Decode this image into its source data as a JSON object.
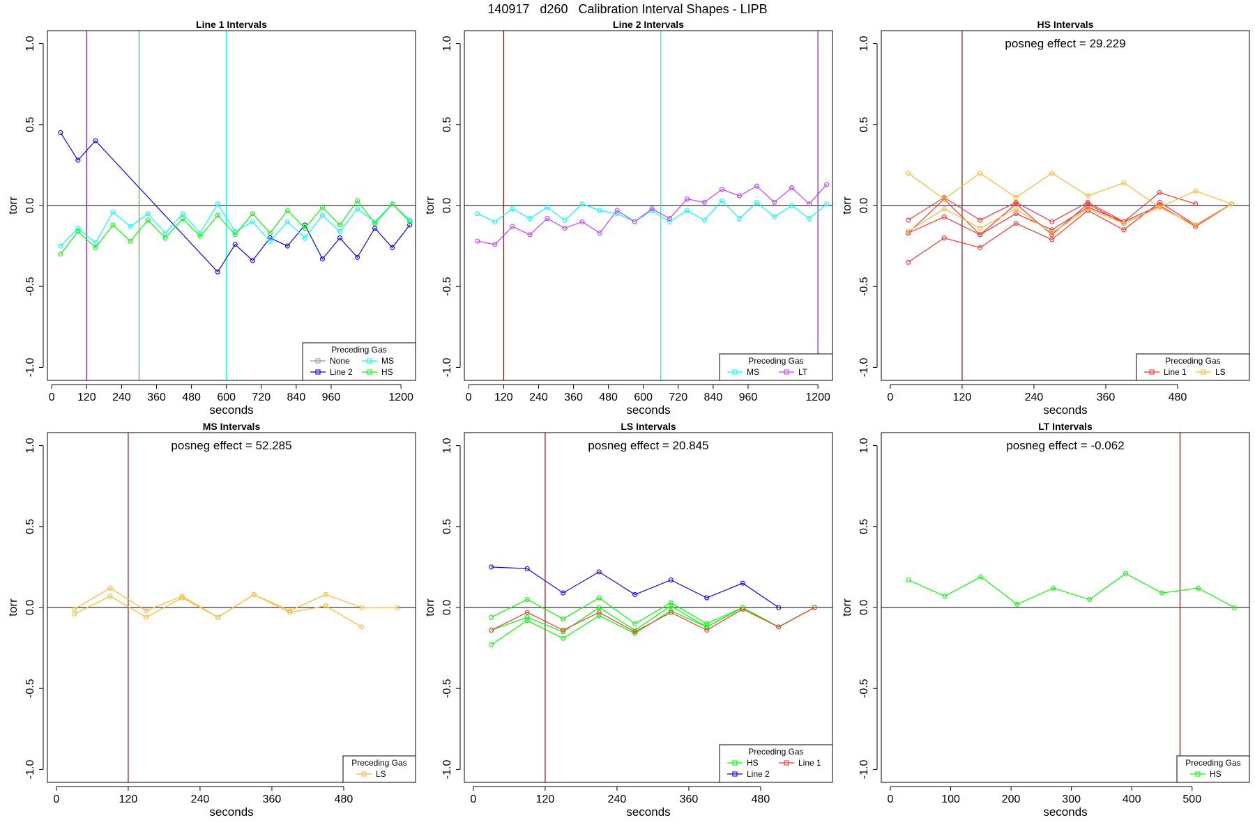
{
  "figure": {
    "title": "140917   d260   Calibration Interval Shapes - LIPB"
  },
  "chart_data": [
    {
      "type": "line",
      "title": "Line 1 Intervals",
      "xlabel": "seconds",
      "ylabel": "torr",
      "xlim": [
        -15,
        1250
      ],
      "ylim": [
        -1.08,
        1.08
      ],
      "xticks": [
        0,
        120,
        240,
        360,
        480,
        600,
        720,
        840,
        960,
        1200
      ],
      "yticks": [
        -1.0,
        -0.5,
        0.0,
        0.5,
        1.0
      ],
      "ytick_labels": [
        "-1.0",
        "-0.5",
        "0.0",
        "0.5",
        "1.0"
      ],
      "hline": 0,
      "vlines": [
        {
          "x": 120,
          "color": "#8b2222"
        },
        {
          "x": 120,
          "color": "#8a2be2"
        },
        {
          "x": 300,
          "color": "#32cd32"
        },
        {
          "x": 600,
          "color": "#00ffff"
        }
      ],
      "series": [
        {
          "name": "Line 2",
          "color": "#0000ff",
          "x": [
            30,
            90,
            150,
            570,
            630,
            690,
            750,
            810,
            870,
            930,
            990,
            1050,
            1110,
            1170,
            1230
          ],
          "y": [
            0.45,
            0.28,
            0.4,
            -0.41,
            -0.24,
            -0.34,
            -0.2,
            -0.25,
            -0.12,
            -0.33,
            -0.2,
            -0.32,
            -0.14,
            -0.26,
            -0.12
          ]
        },
        {
          "name": "MS",
          "color": "#00ffff",
          "x": [
            30,
            90,
            150,
            210,
            270,
            330,
            390,
            450,
            510,
            570,
            630,
            690,
            750,
            810,
            870,
            930,
            990,
            1050,
            1110,
            1170,
            1230
          ],
          "y": [
            -0.25,
            -0.14,
            -0.23,
            -0.04,
            -0.13,
            -0.05,
            -0.17,
            -0.05,
            -0.17,
            0.01,
            -0.16,
            -0.1,
            -0.22,
            -0.1,
            -0.2,
            -0.06,
            -0.16,
            -0.02,
            -0.1,
            0.01,
            -0.09
          ]
        },
        {
          "name": "HS",
          "color": "#00ff00",
          "x": [
            30,
            90,
            150,
            210,
            270,
            330,
            390,
            450,
            510,
            570,
            630,
            690,
            750,
            810,
            870,
            930,
            990,
            1050,
            1110,
            1170,
            1230
          ],
          "y": [
            -0.3,
            -0.16,
            -0.26,
            -0.12,
            -0.22,
            -0.09,
            -0.2,
            -0.08,
            -0.19,
            -0.06,
            -0.18,
            -0.05,
            -0.17,
            -0.03,
            -0.14,
            -0.01,
            -0.12,
            0.03,
            -0.11,
            0.01,
            -0.1
          ]
        }
      ],
      "legend": {
        "title": "Preceding Gas",
        "position": "bottom-right",
        "columns": 2,
        "entries": [
          {
            "label": "None",
            "color": "#999999"
          },
          {
            "label": "MS",
            "color": "#00ffff"
          },
          {
            "label": "Line 2",
            "color": "#0000ff"
          },
          {
            "label": "HS",
            "color": "#00ff00"
          }
        ]
      }
    },
    {
      "type": "line",
      "title": "Line 2 Intervals",
      "xlabel": "seconds",
      "ylabel": "torr",
      "xlim": [
        -15,
        1250
      ],
      "ylim": [
        -1.08,
        1.08
      ],
      "xticks": [
        0,
        120,
        240,
        360,
        480,
        600,
        720,
        840,
        960,
        1200
      ],
      "yticks": [
        -1.0,
        -0.5,
        0.0,
        0.5,
        1.0
      ],
      "ytick_labels": [
        "-1.0",
        "-0.5",
        "0.0",
        "0.5",
        "1.0"
      ],
      "hline": 0,
      "vlines": [
        {
          "x": 120,
          "color": "#8b2222"
        },
        {
          "x": 660,
          "color": "#00ffff"
        },
        {
          "x": 1200,
          "color": "#8a2be2"
        }
      ],
      "series": [
        {
          "name": "MS",
          "color": "#00ffff",
          "x": [
            30,
            90,
            150,
            210,
            270,
            330,
            390,
            450,
            510,
            570,
            630,
            690,
            750,
            810,
            870,
            930,
            990,
            1050,
            1110,
            1170,
            1230
          ],
          "y": [
            -0.05,
            -0.1,
            -0.02,
            -0.08,
            -0.01,
            -0.09,
            0.01,
            -0.03,
            -0.05,
            -0.1,
            -0.03,
            -0.1,
            -0.03,
            -0.09,
            0.03,
            -0.08,
            0.02,
            -0.07,
            0.0,
            -0.08,
            0.01
          ]
        },
        {
          "name": "LT",
          "color": "#bf3eff",
          "x": [
            30,
            90,
            150,
            210,
            270,
            330,
            390,
            450,
            510,
            570,
            630,
            690,
            750,
            810,
            870,
            930,
            990,
            1050,
            1110,
            1170,
            1230
          ],
          "y": [
            -0.22,
            -0.24,
            -0.13,
            -0.18,
            -0.08,
            -0.14,
            -0.1,
            -0.17,
            -0.03,
            -0.1,
            -0.02,
            -0.08,
            0.04,
            0.02,
            0.1,
            0.06,
            0.12,
            0.02,
            0.11,
            0.01,
            0.13
          ]
        }
      ],
      "legend": {
        "title": "Preceding Gas",
        "position": "bottom-right",
        "columns": 2,
        "entries": [
          {
            "label": "MS",
            "color": "#00ffff"
          },
          {
            "label": "LT",
            "color": "#bf3eff"
          }
        ]
      }
    },
    {
      "type": "line",
      "title": "HS Intervals",
      "annotation": "posneg effect = 29.229",
      "xlabel": "seconds",
      "ylabel": "torr",
      "xlim": [
        -15,
        600
      ],
      "ylim": [
        -1.08,
        1.08
      ],
      "xticks": [
        0,
        120,
        240,
        360,
        480
      ],
      "yticks": [
        -1.0,
        -0.5,
        0.0,
        0.5,
        1.0
      ],
      "ytick_labels": [
        "-1.0",
        "-0.5",
        "0.0",
        "0.5",
        "1.0"
      ],
      "hline": 0,
      "vlines": [
        {
          "x": 120,
          "color": "#8b2222"
        }
      ],
      "series": [
        {
          "name": "Line 1",
          "color": "#ff3030",
          "x": [
            30,
            90,
            150,
            210,
            270,
            330,
            390,
            450,
            510
          ],
          "y": [
            -0.09,
            0.05,
            -0.09,
            0.02,
            -0.1,
            0.02,
            -0.1,
            0.08,
            0.01
          ]
        },
        {
          "name": "Line 1",
          "color": "#ff3030",
          "x": [
            30,
            90,
            150,
            210,
            270,
            330,
            390,
            450,
            510,
            570
          ],
          "y": [
            -0.17,
            0.04,
            -0.18,
            0.01,
            -0.18,
            0.01,
            -0.11,
            -0.01,
            -0.12,
            0.01
          ]
        },
        {
          "name": "Line 1",
          "color": "#ff3030",
          "x": [
            30,
            90,
            150,
            210,
            270,
            330,
            390,
            450,
            510,
            570
          ],
          "y": [
            -0.35,
            -0.2,
            -0.26,
            -0.11,
            -0.21,
            -0.03,
            -0.15,
            0.02,
            -0.12,
            0.01
          ]
        },
        {
          "name": "Line 1",
          "color": "#ff3030",
          "x": [
            30,
            90,
            150,
            210,
            270,
            330,
            390,
            450,
            510,
            570
          ],
          "y": [
            -0.17,
            -0.07,
            -0.18,
            -0.05,
            -0.15,
            -0.01,
            -0.1,
            0.0,
            -0.13,
            0.01
          ]
        },
        {
          "name": "LS",
          "color": "#ffb733",
          "x": [
            30,
            90,
            150,
            210,
            270,
            330,
            390,
            450,
            510,
            570
          ],
          "y": [
            0.2,
            0.04,
            0.2,
            0.05,
            0.2,
            0.06,
            0.14,
            -0.01,
            0.09,
            0.01
          ]
        },
        {
          "name": "LS",
          "color": "#ffb733",
          "x": [
            30,
            90,
            150,
            210,
            270,
            330,
            390,
            450,
            510,
            570
          ],
          "y": [
            -0.16,
            -0.02,
            -0.14,
            -0.02,
            -0.17,
            -0.02,
            -0.11,
            -0.01,
            -0.12,
            0.01
          ]
        }
      ],
      "legend": {
        "title": "Preceding Gas",
        "position": "bottom-right",
        "columns": 2,
        "entries": [
          {
            "label": "Line 1",
            "color": "#ff3030"
          },
          {
            "label": "LS",
            "color": "#ffb733"
          }
        ]
      }
    },
    {
      "type": "line",
      "title": "MS Intervals",
      "annotation": "posneg effect = 52.285",
      "xlabel": "seconds",
      "ylabel": "torr",
      "xlim": [
        -15,
        600
      ],
      "ylim": [
        -1.08,
        1.08
      ],
      "xticks": [
        0,
        120,
        240,
        360,
        480
      ],
      "yticks": [
        -1.0,
        -0.5,
        0.0,
        0.5,
        1.0
      ],
      "ytick_labels": [
        "-1.0",
        "-0.5",
        "0.0",
        "0.5",
        "1.0"
      ],
      "hline": 0,
      "vlines": [
        {
          "x": 120,
          "color": "#8b2222"
        }
      ],
      "series": [
        {
          "name": "LS",
          "color": "#ffb733",
          "x": [
            30,
            90,
            150,
            210,
            270,
            330,
            390,
            450,
            510,
            570
          ],
          "y": [
            -0.01,
            0.12,
            -0.02,
            0.07,
            -0.06,
            0.08,
            -0.02,
            0.08,
            0.0,
            0.0
          ]
        },
        {
          "name": "LS",
          "color": "#ffb733",
          "x": [
            30,
            90,
            150,
            210,
            270,
            330,
            390,
            450,
            510
          ],
          "y": [
            -0.04,
            0.07,
            -0.06,
            0.06,
            -0.06,
            0.08,
            -0.03,
            0.01,
            -0.12
          ]
        }
      ],
      "legend": {
        "title": "Preceding Gas",
        "position": "bottom-right",
        "columns": 1,
        "entries": [
          {
            "label": "LS",
            "color": "#ffb733"
          }
        ]
      }
    },
    {
      "type": "line",
      "title": "LS Intervals",
      "annotation": "posneg effect = 20.845",
      "xlabel": "seconds",
      "ylabel": "torr",
      "xlim": [
        -15,
        600
      ],
      "ylim": [
        -1.08,
        1.08
      ],
      "xticks": [
        0,
        120,
        240,
        360,
        480
      ],
      "yticks": [
        -1.0,
        -0.5,
        0.0,
        0.5,
        1.0
      ],
      "ytick_labels": [
        "-1.0",
        "-0.5",
        "0.0",
        "0.5",
        "1.0"
      ],
      "hline": 0,
      "vlines": [
        {
          "x": 120,
          "color": "#8b2222"
        }
      ],
      "series": [
        {
          "name": "Line 2",
          "color": "#0000ff",
          "x": [
            30,
            90,
            150,
            210,
            270,
            330,
            390,
            450,
            510
          ],
          "y": [
            0.25,
            0.24,
            0.09,
            0.22,
            0.08,
            0.17,
            0.06,
            0.15,
            0.0
          ]
        },
        {
          "name": "HS",
          "color": "#00ff00",
          "x": [
            30,
            90,
            150,
            210,
            270,
            330,
            390,
            450,
            510,
            570
          ],
          "y": [
            -0.06,
            0.05,
            -0.07,
            0.06,
            -0.1,
            0.03,
            -0.1,
            0.0,
            -0.12,
            0.0
          ]
        },
        {
          "name": "HS",
          "color": "#00ff00",
          "x": [
            30,
            90,
            150,
            210,
            270,
            330,
            390,
            450,
            510,
            570
          ],
          "y": [
            -0.23,
            -0.08,
            -0.19,
            -0.05,
            -0.16,
            -0.02,
            -0.12,
            0.0,
            -0.12,
            0.0
          ]
        },
        {
          "name": "HS",
          "color": "#00ff00",
          "x": [
            30,
            90,
            150,
            210,
            270,
            330,
            390,
            450,
            510,
            570
          ],
          "y": [
            -0.14,
            -0.06,
            -0.15,
            0.0,
            -0.14,
            0.01,
            -0.12,
            0.0,
            -0.12,
            0.0
          ]
        },
        {
          "name": "Line 1",
          "color": "#ff3030",
          "x": [
            30,
            90,
            150,
            210,
            270,
            330,
            390,
            450,
            510,
            570
          ],
          "y": [
            -0.14,
            -0.03,
            -0.14,
            -0.03,
            -0.15,
            -0.03,
            -0.14,
            -0.01,
            -0.12,
            0.0
          ]
        }
      ],
      "legend": {
        "title": "Preceding Gas",
        "position": "bottom-right",
        "columns": 2,
        "entries": [
          {
            "label": "HS",
            "color": "#00ff00"
          },
          {
            "label": "Line 1",
            "color": "#ff3030"
          },
          {
            "label": "Line 2",
            "color": "#0000ff"
          }
        ]
      }
    },
    {
      "type": "line",
      "title": "LT Intervals",
      "annotation": "posneg effect = -0.062",
      "xlabel": "seconds",
      "ylabel": "torr",
      "xlim": [
        -15,
        595
      ],
      "ylim": [
        -1.08,
        1.08
      ],
      "xticks": [
        0,
        100,
        200,
        300,
        400,
        500
      ],
      "yticks": [
        -1.0,
        -0.5,
        0.0,
        0.5,
        1.0
      ],
      "ytick_labels": [
        "-1.0",
        "-0.5",
        "0.0",
        "0.5",
        "1.0"
      ],
      "hline": 0,
      "vlines": [
        {
          "x": 480,
          "color": "#8b2222"
        }
      ],
      "series": [
        {
          "name": "HS",
          "color": "#00ff00",
          "x": [
            30,
            90,
            150,
            210,
            270,
            330,
            390,
            450,
            510,
            570
          ],
          "y": [
            0.17,
            0.07,
            0.19,
            0.02,
            0.12,
            0.05,
            0.21,
            0.09,
            0.12,
            0.0
          ]
        }
      ],
      "legend": {
        "title": "Preceding Gas",
        "position": "bottom-right",
        "columns": 1,
        "entries": [
          {
            "label": "HS",
            "color": "#00ff00"
          }
        ]
      }
    }
  ]
}
